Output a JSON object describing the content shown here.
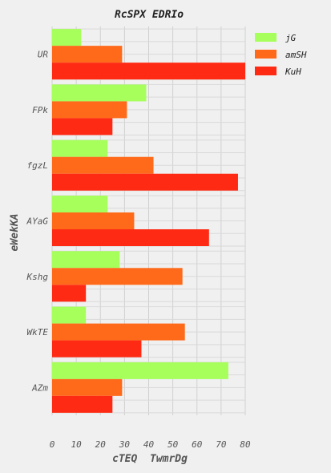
{
  "chart_data": {
    "type": "bar",
    "orientation": "horizontal",
    "title": "RcSPX EDRIo",
    "xlabel": "cTEQ  TwmrDg",
    "ylabel": "eWekKA",
    "categories": [
      "UR",
      "FPk",
      "fgzL",
      "AYaG",
      "Kshg",
      "WkTE",
      "AZm"
    ],
    "xlim": [
      0,
      80
    ],
    "xticks": [
      0,
      10,
      20,
      30,
      40,
      50,
      60,
      70,
      80
    ],
    "grid": true,
    "legend_position": "top-right",
    "series": [
      {
        "name": "jG",
        "color": "#a6ff5a",
        "values": [
          12,
          39,
          23,
          23,
          28,
          14,
          73
        ]
      },
      {
        "name": "amSH",
        "color": "#ff6a1a",
        "values": [
          29,
          31,
          42,
          34,
          54,
          55,
          29
        ]
      },
      {
        "name": "KuH",
        "color": "#ff2a14",
        "values": [
          80,
          25,
          77,
          65,
          14,
          37,
          25
        ]
      }
    ]
  }
}
